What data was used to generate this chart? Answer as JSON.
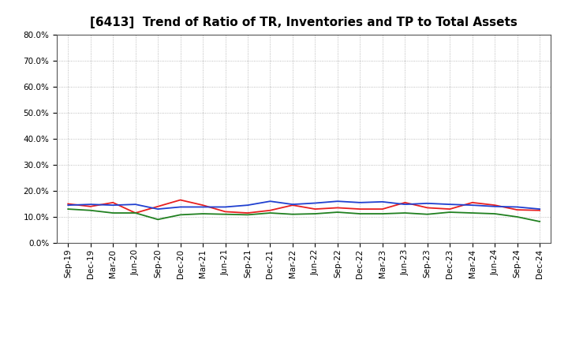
{
  "title": "[6413]  Trend of Ratio of TR, Inventories and TP to Total Assets",
  "x_labels": [
    "Sep-19",
    "Dec-19",
    "Mar-20",
    "Jun-20",
    "Sep-20",
    "Dec-20",
    "Mar-21",
    "Jun-21",
    "Sep-21",
    "Dec-21",
    "Mar-22",
    "Jun-22",
    "Sep-22",
    "Dec-22",
    "Mar-23",
    "Jun-23",
    "Sep-23",
    "Dec-23",
    "Mar-24",
    "Jun-24",
    "Sep-24",
    "Dec-24"
  ],
  "trade_receivables": [
    0.15,
    0.14,
    0.155,
    0.115,
    0.14,
    0.165,
    0.145,
    0.12,
    0.115,
    0.125,
    0.145,
    0.13,
    0.135,
    0.13,
    0.13,
    0.155,
    0.135,
    0.13,
    0.155,
    0.145,
    0.127,
    0.125
  ],
  "inventories": [
    0.145,
    0.148,
    0.145,
    0.148,
    0.13,
    0.138,
    0.138,
    0.138,
    0.145,
    0.16,
    0.148,
    0.153,
    0.16,
    0.155,
    0.158,
    0.148,
    0.152,
    0.148,
    0.145,
    0.14,
    0.138,
    0.13
  ],
  "trade_payables": [
    0.13,
    0.125,
    0.115,
    0.115,
    0.09,
    0.108,
    0.112,
    0.11,
    0.108,
    0.115,
    0.11,
    0.112,
    0.118,
    0.112,
    0.112,
    0.115,
    0.11,
    0.118,
    0.115,
    0.112,
    0.1,
    0.082
  ],
  "ylim": [
    0.0,
    0.8
  ],
  "yticks": [
    0.0,
    0.1,
    0.2,
    0.3,
    0.4,
    0.5,
    0.6,
    0.7,
    0.8
  ],
  "color_tr": "#e82020",
  "color_inv": "#2040d0",
  "color_tp": "#208020",
  "bg_color": "#ffffff",
  "plot_bg_color": "#ffffff",
  "grid_color": "#aaaaaa",
  "title_fontsize": 11,
  "tick_fontsize": 7.5,
  "legend_fontsize": 9
}
